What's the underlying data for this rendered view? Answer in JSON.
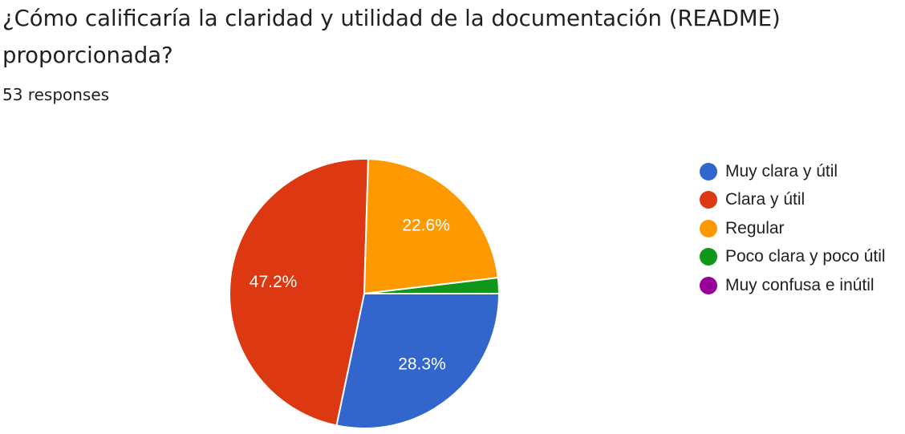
{
  "question": {
    "title": "¿Cómo calificaría la claridad y utilidad de la documentación (README) proporcionada?",
    "responses": "53 responses"
  },
  "chart_data": {
    "type": "pie",
    "total": 53,
    "slices": [
      {
        "label": "Muy clara y útil",
        "count": 15,
        "percent": 28.3,
        "display": "28.3%",
        "color": "#3366cc"
      },
      {
        "label": "Clara y útil",
        "count": 25,
        "percent": 47.2,
        "display": "47.2%",
        "color": "#dc3912"
      },
      {
        "label": "Regular",
        "count": 12,
        "percent": 22.6,
        "display": "22.6%",
        "color": "#ff9900"
      },
      {
        "label": "Poco clara y poco útil",
        "count": 1,
        "percent": 1.9,
        "display": "",
        "color": "#109618"
      },
      {
        "label": "Muy confusa e inútil",
        "count": 0,
        "percent": 0,
        "display": "",
        "color": "#990099"
      }
    ],
    "legend_position": "right"
  }
}
